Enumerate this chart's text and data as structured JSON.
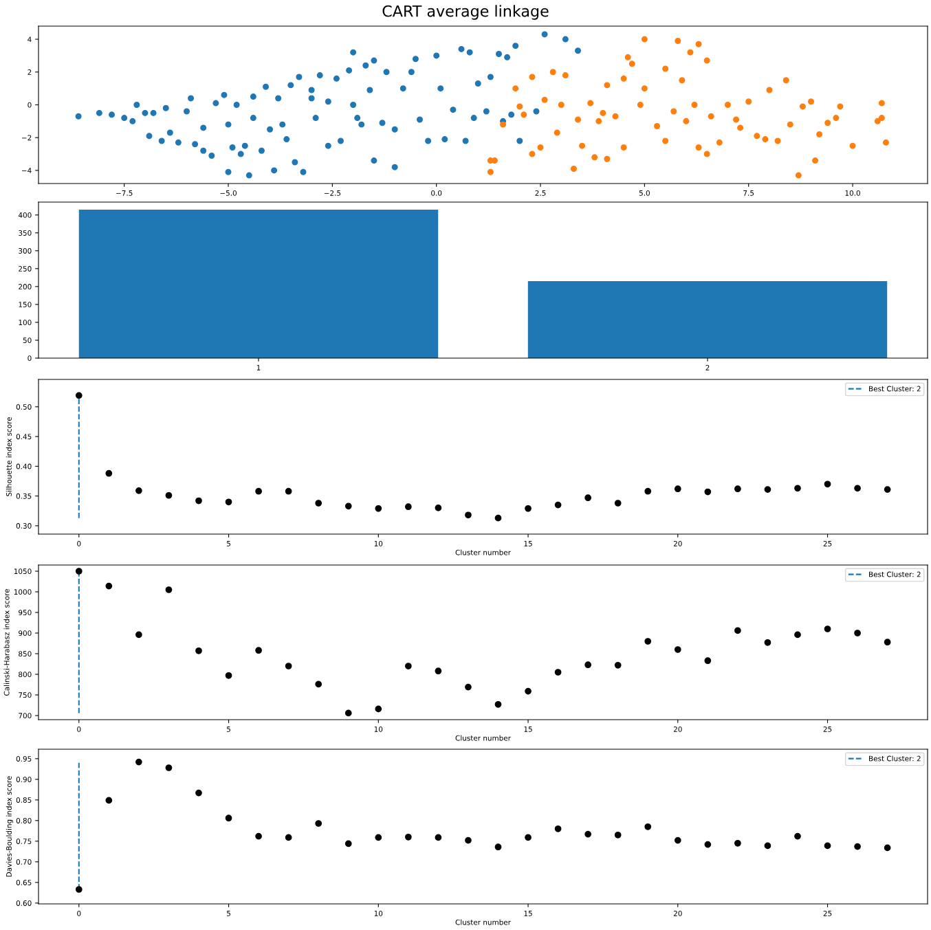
{
  "chart_data": [
    {
      "type": "scatter",
      "title": "CART average linkage",
      "xlim": [
        -9.56,
        11.8
      ],
      "ylim": [
        -4.8,
        4.8
      ],
      "xticks": [
        {
          "value": -7.5,
          "label": "−7.5"
        },
        {
          "value": -5.0,
          "label": "−5.0"
        },
        {
          "value": -2.5,
          "label": "−2.5"
        },
        {
          "value": 0,
          "label": "0.0"
        },
        2.5,
        {
          "value": 5,
          "label": "5.0"
        },
        7.5,
        {
          "value": 10,
          "label": "10.0"
        }
      ],
      "yticks": [
        {
          "value": -4,
          "label": "−4"
        },
        {
          "value": -2,
          "label": "−2"
        },
        0,
        2,
        4
      ],
      "marker": "circle",
      "legend": false,
      "grid": false,
      "series": [
        {
          "color": "#1f77b4",
          "x": [
            -8.6,
            -8.1,
            -7.8,
            -7.5,
            -7.3,
            -7.2,
            -7.0,
            -6.9,
            -6.8,
            -6.6,
            -6.5,
            -6.4,
            -6.2,
            -6.0,
            -5.9,
            -5.8,
            -5.6,
            -5.6,
            -5.4,
            -5.3,
            -5.1,
            -5.0,
            -5.0,
            -4.9,
            -4.8,
            -4.7,
            -4.6,
            -4.5,
            -4.4,
            -4.4,
            -4.2,
            -4.1,
            -4.0,
            -3.9,
            -3.8,
            -3.7,
            -3.6,
            -3.5,
            -3.4,
            -3.3,
            -3.2,
            -3.0,
            -3.0,
            -2.9,
            -2.8,
            -2.6,
            -2.6,
            -2.4,
            -2.3,
            -2.1,
            -2.0,
            -2.0,
            -1.9,
            -1.8,
            -1.7,
            -1.6,
            -1.5,
            -1.5,
            -1.3,
            -1.2,
            -1.0,
            -1.0,
            -0.8,
            -0.6,
            -0.5,
            -0.4,
            -0.2,
            0.0,
            0.1,
            0.2,
            0.4,
            0.6,
            0.7,
            0.8,
            0.9,
            1.0,
            1.2,
            1.3,
            1.5,
            1.6,
            1.7,
            1.8,
            1.9,
            2.0,
            2.4,
            2.6,
            3.1,
            3.4
          ],
          "values": [
            -0.7,
            -0.5,
            -0.6,
            -0.8,
            -1.0,
            0.0,
            -0.5,
            -1.9,
            -0.5,
            -2.2,
            -0.2,
            -1.7,
            -2.3,
            -0.4,
            0.4,
            -2.4,
            -1.4,
            -2.8,
            -3.1,
            0.1,
            0.6,
            -1.2,
            -4.1,
            -2.6,
            0.0,
            -3.0,
            -2.5,
            -4.3,
            0.5,
            -0.8,
            -2.8,
            1.1,
            -1.5,
            -4.0,
            0.4,
            -1.2,
            -2.1,
            1.2,
            -3.5,
            1.7,
            -4.1,
            0.4,
            0.9,
            -0.8,
            1.8,
            0.2,
            -2.5,
            1.6,
            -2.2,
            2.1,
            0.0,
            3.2,
            -0.8,
            -1.2,
            2.4,
            0.9,
            2.7,
            -3.4,
            -1.1,
            2.0,
            -1.5,
            -3.8,
            1.0,
            2.0,
            2.8,
            -0.9,
            -2.2,
            3.0,
            1.0,
            -2.1,
            -0.3,
            3.4,
            -2.2,
            3.2,
            -0.8,
            1.3,
            -0.4,
            1.7,
            3.1,
            -1.0,
            2.9,
            -0.6,
            3.6,
            -2.2,
            -0.4,
            4.3,
            4.0,
            3.3
          ]
        },
        {
          "color": "#ff7f0e",
          "x": [
            1.3,
            1.3,
            1.4,
            1.6,
            1.9,
            2.0,
            2.1,
            2.3,
            2.3,
            2.5,
            2.6,
            2.8,
            2.9,
            3.0,
            3.1,
            3.3,
            3.4,
            3.5,
            3.7,
            3.8,
            3.9,
            4.0,
            4.1,
            4.1,
            4.3,
            4.5,
            4.5,
            4.6,
            4.7,
            4.9,
            5.0,
            5.0,
            5.3,
            5.5,
            5.5,
            5.7,
            5.8,
            5.9,
            6.0,
            6.1,
            6.2,
            6.3,
            6.3,
            6.5,
            6.5,
            6.6,
            6.8,
            7.0,
            7.2,
            7.3,
            7.5,
            7.7,
            7.9,
            8.0,
            8.2,
            8.4,
            8.5,
            8.7,
            8.8,
            9.0,
            9.1,
            9.2,
            9.4,
            9.6,
            9.7,
            10.0,
            10.6,
            10.7,
            10.7,
            10.8
          ],
          "values": [
            -3.4,
            -4.1,
            -3.4,
            -1.2,
            1.0,
            -0.1,
            -0.6,
            1.7,
            -3.0,
            -2.6,
            0.3,
            2.0,
            -1.7,
            0.0,
            1.8,
            -3.9,
            -0.9,
            -2.5,
            0.1,
            -3.2,
            -1.0,
            -0.5,
            1.2,
            -3.3,
            -0.7,
            1.6,
            -2.6,
            2.9,
            2.5,
            0.0,
            4.0,
            1.0,
            -1.3,
            2.2,
            -2.2,
            -0.4,
            3.9,
            1.5,
            -1.0,
            3.2,
            0.0,
            3.7,
            -2.6,
            2.7,
            -3.0,
            -0.7,
            -2.3,
            0.0,
            -0.9,
            -1.4,
            0.2,
            -1.9,
            -2.1,
            0.9,
            -2.2,
            1.5,
            -1.2,
            -4.3,
            -0.1,
            0.2,
            -3.4,
            -1.8,
            -1.1,
            -0.8,
            -0.1,
            -2.5,
            -1.0,
            0.1,
            -0.8,
            -2.3
          ]
        }
      ]
    },
    {
      "type": "bar",
      "categories": [
        "1",
        "2"
      ],
      "values": [
        415,
        215
      ],
      "color": "#1f77b4",
      "ylim": [
        0,
        436
      ],
      "yticks": [
        0,
        50,
        100,
        150,
        200,
        250,
        300,
        350,
        400
      ],
      "grid": false,
      "legend": false
    },
    {
      "type": "scatter",
      "xlabel": "Cluster number",
      "ylabel": "Silhouette index score",
      "xlim": [
        -1.35,
        28.34
      ],
      "ylim": [
        0.286,
        0.546
      ],
      "xticks": [
        0,
        5,
        10,
        15,
        20,
        25
      ],
      "yticks": [
        {
          "value": 0.3,
          "label": "0.30"
        },
        0.35,
        {
          "value": 0.4,
          "label": "0.40"
        },
        0.45,
        {
          "value": 0.5,
          "label": "0.50"
        }
      ],
      "marker": "circle",
      "grid": false,
      "legend": "top right",
      "x": [
        0,
        1,
        2,
        3,
        4,
        5,
        6,
        7,
        8,
        9,
        10,
        11,
        12,
        13,
        14,
        15,
        16,
        17,
        18,
        19,
        20,
        21,
        22,
        23,
        24,
        25,
        26,
        27
      ],
      "series": [
        {
          "type": "line",
          "name": "Best Cluster: 2",
          "color": "#1f77b4",
          "line_style": "dashed",
          "marker": "none",
          "x": [
            0,
            0
          ],
          "values": [
            0.313,
            0.519
          ]
        },
        {
          "color": "#000000",
          "values": [
            0.519,
            0.388,
            0.359,
            0.351,
            0.342,
            0.34,
            0.358,
            0.358,
            0.338,
            0.333,
            0.329,
            0.332,
            0.33,
            0.318,
            0.313,
            0.329,
            0.335,
            0.347,
            0.338,
            0.358,
            0.362,
            0.357,
            0.362,
            0.361,
            0.363,
            0.37,
            0.363,
            0.361
          ]
        }
      ]
    },
    {
      "type": "scatter",
      "xlabel": "Cluster number",
      "ylabel": "Calinski-Harabasz index score",
      "xlim": [
        -1.35,
        28.34
      ],
      "ylim": [
        690,
        1065
      ],
      "xticks": [
        0,
        5,
        10,
        15,
        20,
        25
      ],
      "yticks": [
        700,
        750,
        800,
        850,
        900,
        950,
        1000,
        1050
      ],
      "marker": "circle",
      "grid": false,
      "legend": "top right",
      "x": [
        0,
        1,
        2,
        3,
        4,
        5,
        6,
        7,
        8,
        9,
        10,
        11,
        12,
        13,
        14,
        15,
        16,
        17,
        18,
        19,
        20,
        21,
        22,
        23,
        24,
        25,
        26,
        27
      ],
      "series": [
        {
          "type": "line",
          "name": "Best Cluster: 2",
          "color": "#1f77b4",
          "line_style": "dashed",
          "marker": "none",
          "x": [
            0,
            0
          ],
          "values": [
            706,
            1050
          ]
        },
        {
          "color": "#000000",
          "values": [
            1050,
            1014,
            896,
            1005,
            857,
            797,
            858,
            820,
            776,
            706,
            716,
            820,
            808,
            769,
            727,
            759,
            805,
            823,
            822,
            880,
            860,
            833,
            906,
            877,
            896,
            910,
            900,
            878
          ]
        }
      ]
    },
    {
      "type": "scatter",
      "xlabel": "Cluster number",
      "ylabel": "Davies-Boulding index score",
      "xlim": [
        -1.35,
        28.34
      ],
      "ylim": [
        0.598,
        0.973
      ],
      "xticks": [
        0,
        5,
        10,
        15,
        20,
        25
      ],
      "yticks": [
        {
          "value": 0.6,
          "label": "0.60"
        },
        0.65,
        {
          "value": 0.7,
          "label": "0.70"
        },
        0.75,
        {
          "value": 0.8,
          "label": "0.80"
        },
        0.85,
        {
          "value": 0.9,
          "label": "0.90"
        },
        0.95
      ],
      "marker": "circle",
      "grid": false,
      "legend": "top right",
      "x": [
        0,
        1,
        2,
        3,
        4,
        5,
        6,
        7,
        8,
        9,
        10,
        11,
        12,
        13,
        14,
        15,
        16,
        17,
        18,
        19,
        20,
        21,
        22,
        23,
        24,
        25,
        26,
        27
      ],
      "series": [
        {
          "type": "line",
          "name": "Best Cluster: 2",
          "color": "#1f77b4",
          "line_style": "dashed",
          "marker": "none",
          "x": [
            0,
            0
          ],
          "values": [
            0.633,
            0.942
          ]
        },
        {
          "color": "#000000",
          "values": [
            0.633,
            0.849,
            0.942,
            0.928,
            0.867,
            0.806,
            0.762,
            0.759,
            0.793,
            0.744,
            0.759,
            0.76,
            0.759,
            0.752,
            0.736,
            0.759,
            0.78,
            0.767,
            0.765,
            0.785,
            0.752,
            0.742,
            0.745,
            0.739,
            0.762,
            0.739,
            0.737,
            0.734
          ]
        }
      ]
    }
  ]
}
